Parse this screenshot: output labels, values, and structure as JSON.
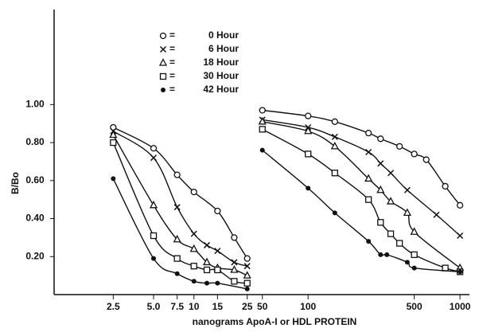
{
  "chart_data": {
    "type": "line",
    "ylabel": "B/Bo",
    "xlabel": "nanograms ApoA-I or HDL PROTEIN",
    "ylim": [
      0,
      1.5
    ],
    "yticks": [
      {
        "value": 0.2,
        "label": "0.20"
      },
      {
        "value": 0.4,
        "label": "0.40"
      },
      {
        "value": 0.6,
        "label": "0.60"
      },
      {
        "value": 0.8,
        "label": "0.80"
      },
      {
        "value": 1.0,
        "label": "1.00"
      }
    ],
    "xlog": true,
    "xaxes": [
      {
        "xlim": [
          2,
          28
        ],
        "xticks": [
          2.5,
          {
            "value": 5,
            "label": "5.0"
          },
          7.5,
          10,
          15,
          25
        ]
      },
      {
        "xlim": [
          45,
          1100
        ],
        "xticks": [
          50,
          100,
          500,
          1000
        ]
      }
    ],
    "legend_separator": "=",
    "series": [
      {
        "name": "0 Hour",
        "marker": "circle",
        "color": "#111",
        "panels": [
          {
            "x": [
              2.5,
              5,
              7.5,
              10,
              15,
              20,
              25
            ],
            "values": [
              0.88,
              0.77,
              0.63,
              0.54,
              0.44,
              0.3,
              0.19
            ]
          },
          {
            "x": [
              50,
              100,
              150,
              250,
              300,
              400,
              500,
              600,
              800,
              1000
            ],
            "values": [
              0.97,
              0.94,
              0.91,
              0.85,
              0.82,
              0.78,
              0.74,
              0.71,
              0.57,
              0.47
            ]
          }
        ]
      },
      {
        "name": "6 Hour",
        "marker": "cross",
        "color": "#111",
        "panels": [
          {
            "x": [
              2.5,
              5,
              7.5,
              10,
              12.5,
              15,
              20,
              25
            ],
            "values": [
              0.86,
              0.72,
              0.46,
              0.32,
              0.26,
              0.23,
              0.17,
              0.15
            ]
          },
          {
            "x": [
              50,
              100,
              150,
              250,
              300,
              350,
              450,
              700,
              1000
            ],
            "values": [
              0.92,
              0.88,
              0.83,
              0.75,
              0.69,
              0.64,
              0.55,
              0.42,
              0.31
            ]
          }
        ]
      },
      {
        "name": "18 Hour",
        "marker": "triangle",
        "color": "#111",
        "panels": [
          {
            "x": [
              2.5,
              5,
              7.5,
              10,
              12.5,
              15,
              20,
              25
            ],
            "values": [
              0.84,
              0.47,
              0.29,
              0.24,
              0.17,
              0.14,
              0.13,
              0.1
            ]
          },
          {
            "x": [
              50,
              100,
              150,
              250,
              300,
              350,
              450,
              500,
              1000
            ],
            "values": [
              0.91,
              0.86,
              0.78,
              0.61,
              0.55,
              0.49,
              0.43,
              0.33,
              0.14
            ]
          }
        ]
      },
      {
        "name": "30 Hour",
        "marker": "square",
        "color": "#111",
        "panels": [
          {
            "x": [
              2.5,
              5,
              7.5,
              10,
              12.5,
              15,
              20,
              25
            ],
            "values": [
              0.8,
              0.31,
              0.19,
              0.15,
              0.13,
              0.13,
              0.07,
              0.06
            ]
          },
          {
            "x": [
              50,
              100,
              150,
              250,
              300,
              350,
              400,
              500,
              800,
              1000
            ],
            "values": [
              0.87,
              0.74,
              0.64,
              0.5,
              0.38,
              0.32,
              0.27,
              0.21,
              0.14,
              0.12
            ]
          }
        ]
      },
      {
        "name": "42 Hour",
        "marker": "dot",
        "color": "#111",
        "panels": [
          {
            "x": [
              2.5,
              5,
              7.5,
              10,
              12.5,
              15,
              25
            ],
            "values": [
              0.61,
              0.19,
              0.11,
              0.07,
              0.06,
              0.06,
              0.03
            ]
          },
          {
            "x": [
              50,
              100,
              150,
              250,
              300,
              330,
              450,
              500,
              1000
            ],
            "values": [
              0.76,
              0.56,
              0.43,
              0.28,
              0.21,
              0.21,
              0.17,
              0.14,
              0.12
            ]
          }
        ]
      }
    ]
  }
}
